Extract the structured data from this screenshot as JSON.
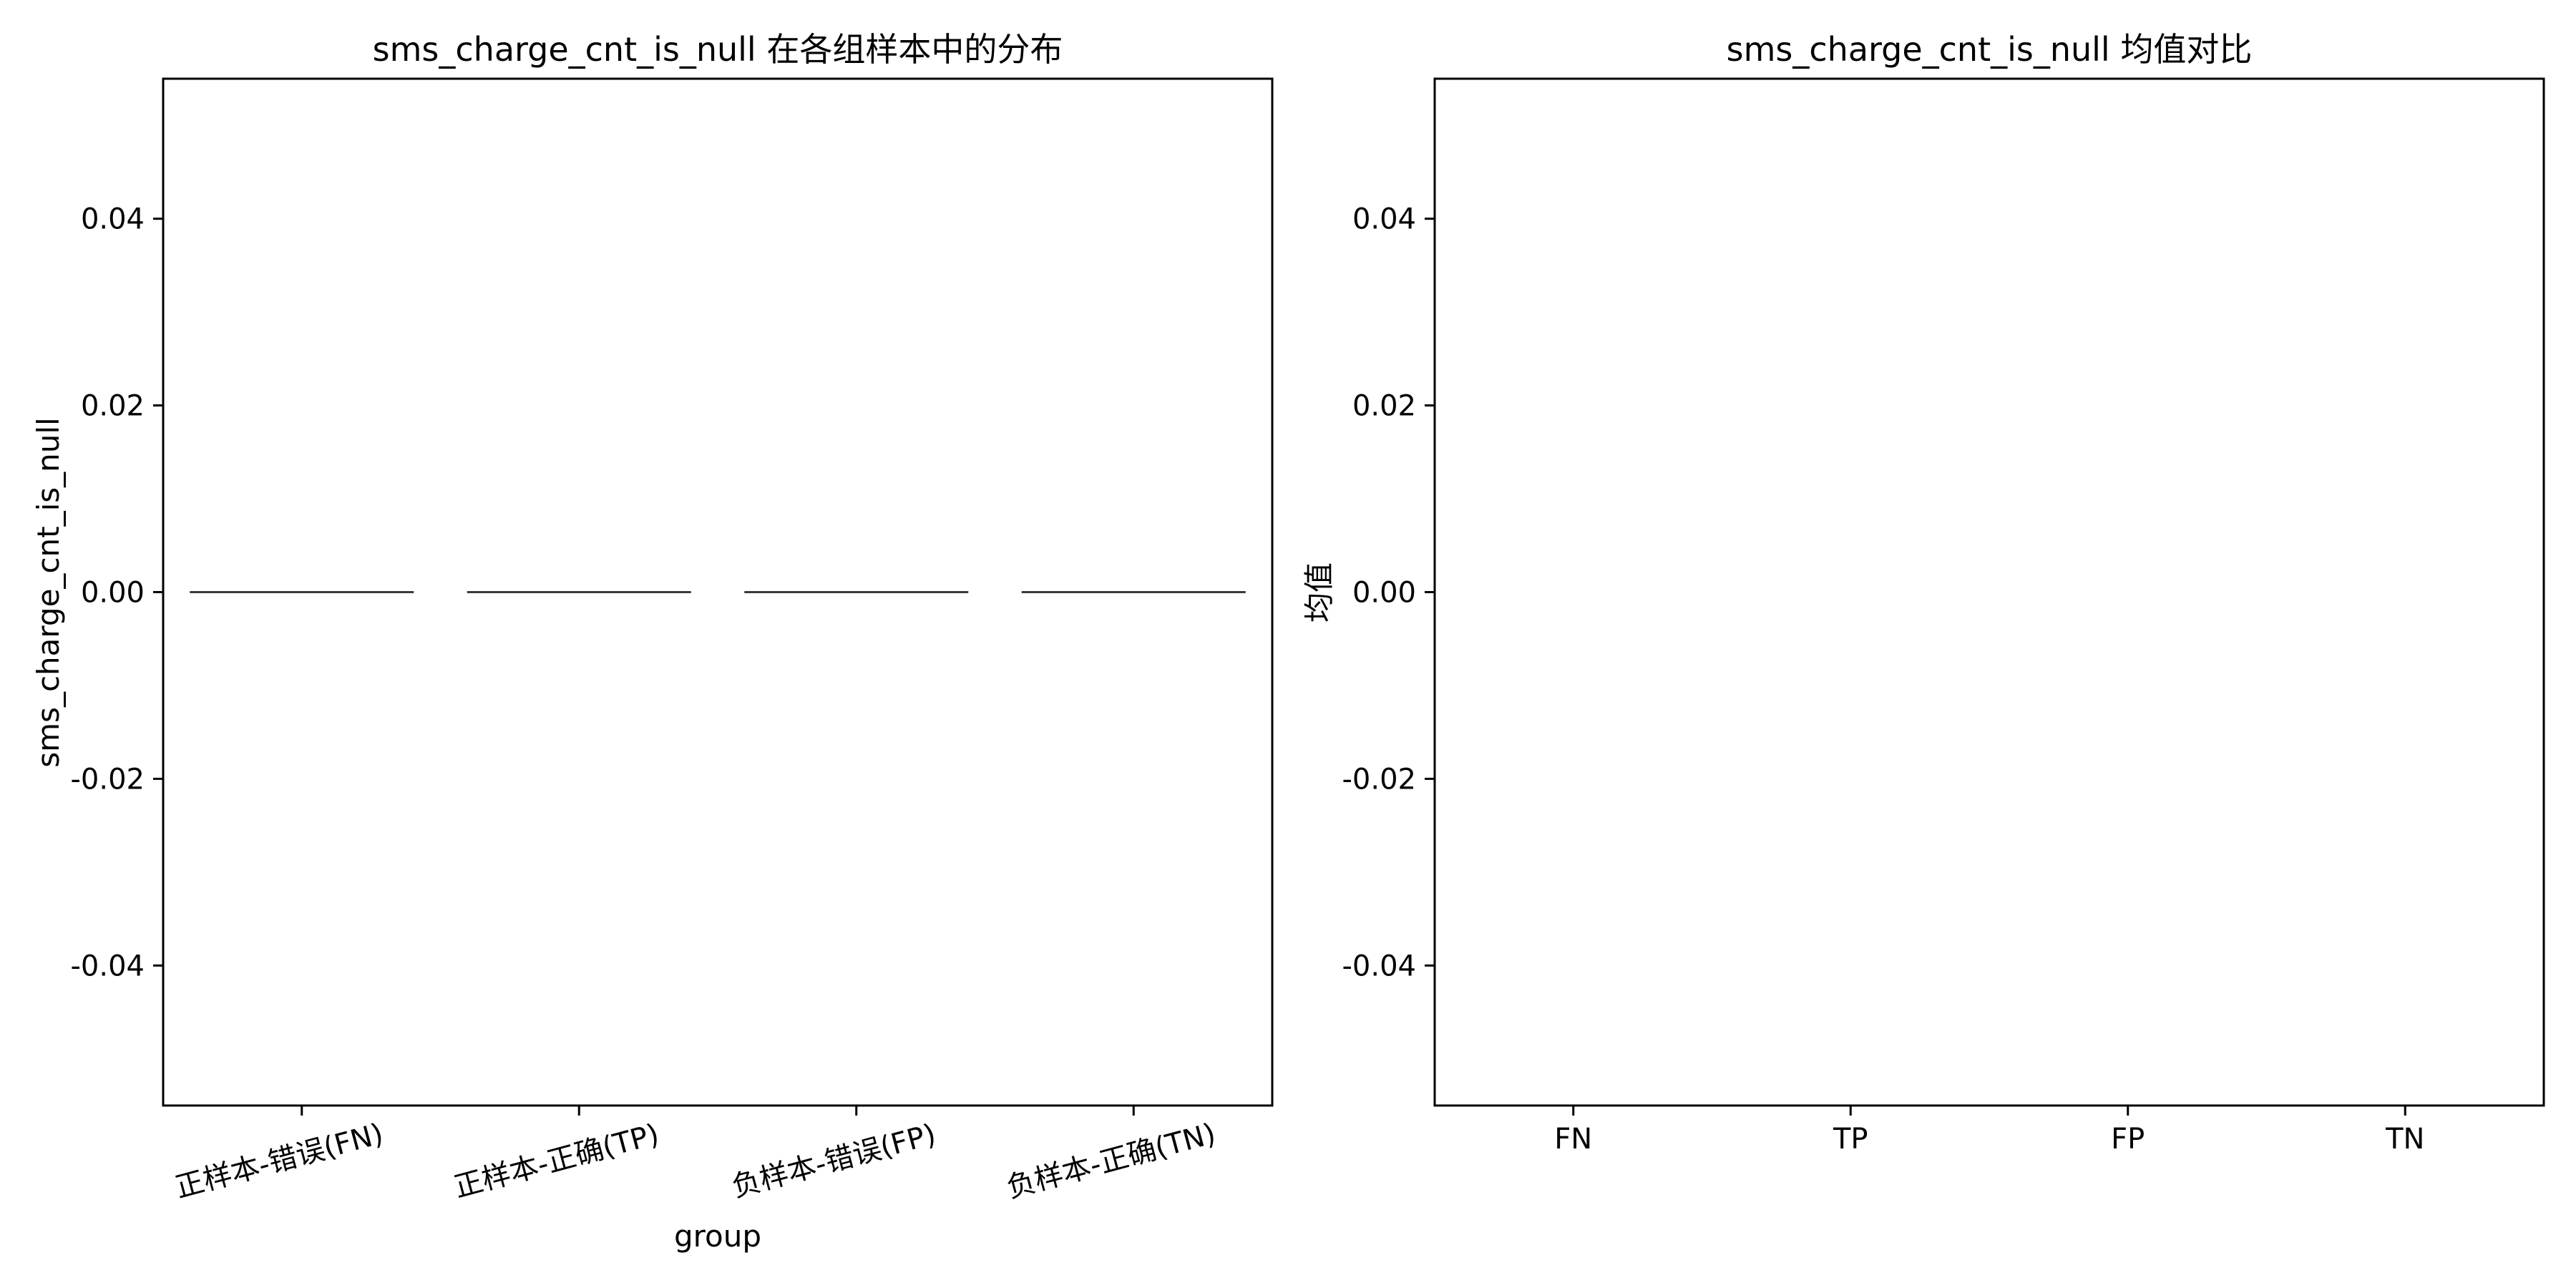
{
  "chart_data": [
    {
      "type": "box",
      "title": "sms_charge_cnt_is_null 在各组样本中的分布",
      "xlabel": "group",
      "ylabel": "sms_charge_cnt_is_null",
      "categories": [
        "正样本-错误(FN)",
        "正样本-正确(TP)",
        "负样本-错误(FP)",
        "负样本-正确(TN)"
      ],
      "values": [
        {
          "min": 0,
          "q1": 0,
          "median": 0,
          "q3": 0,
          "max": 0
        },
        {
          "min": 0,
          "q1": 0,
          "median": 0,
          "q3": 0,
          "max": 0
        },
        {
          "min": 0,
          "q1": 0,
          "median": 0,
          "q3": 0,
          "max": 0
        },
        {
          "min": 0,
          "q1": 0,
          "median": 0,
          "q3": 0,
          "max": 0
        }
      ],
      "ylim": [
        -0.055,
        0.055
      ],
      "yticks": [
        0.04,
        0.02,
        0.0,
        -0.02,
        -0.04
      ],
      "ytick_labels": [
        "0.04",
        "0.02",
        "0.00",
        "-0.02",
        "-0.04"
      ],
      "grid": false
    },
    {
      "type": "bar",
      "title": "sms_charge_cnt_is_null 均值对比",
      "xlabel": "",
      "ylabel": "均值",
      "categories": [
        "FN",
        "TP",
        "FP",
        "TN"
      ],
      "values": [
        0,
        0,
        0,
        0
      ],
      "ylim": [
        -0.055,
        0.055
      ],
      "yticks": [
        0.04,
        0.02,
        0.0,
        -0.02,
        -0.04
      ],
      "ytick_labels": [
        "0.04",
        "0.02",
        "0.00",
        "-0.02",
        "-0.04"
      ],
      "grid": false
    }
  ]
}
